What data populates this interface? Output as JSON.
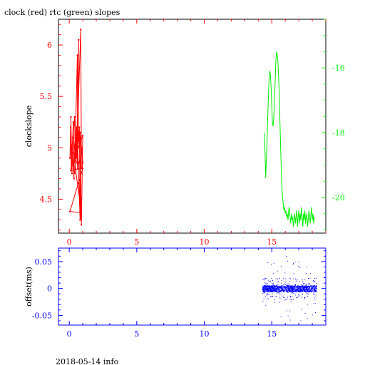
{
  "chart_data": [
    {
      "type": "line",
      "title": "clock (red) rtc (green) slopes",
      "ylabel": "clockslope",
      "xlim": [
        -0.8,
        19
      ],
      "ylim": [
        4.17,
        6.25
      ],
      "y2lim": [
        -21.1,
        -14.5
      ],
      "x_ticks": [
        "0",
        "5",
        "10",
        "15"
      ],
      "y_ticks": [
        "4.5",
        "5",
        "5.5",
        "6"
      ],
      "y2_ticks": [
        "-20",
        "-18",
        "-16"
      ],
      "grid": false,
      "colors": {
        "axes": "#000000",
        "clock": "#ff0000",
        "rtc": "#00ee00"
      },
      "series": [
        {
          "name": "clock",
          "axis": "left",
          "x": [
            0.05,
            0.1,
            0.15,
            0.12,
            0.2,
            0.25,
            0.18,
            0.3,
            0.35,
            0.2,
            0.4,
            0.45,
            0.3,
            0.5,
            0.55,
            0.4,
            0.6,
            0.62,
            0.5,
            0.65,
            0.7,
            0.55,
            0.75,
            0.8,
            0.6,
            0.85,
            0.9,
            0.7,
            0.95,
            1.0,
            0.8,
            0.9,
            1.0,
            0.1,
            1.0,
            0.05,
            0.9,
            0.3,
            0.65,
            0.8,
            0.85
          ],
          "y": [
            4.9,
            5.2,
            4.8,
            5.3,
            4.75,
            5.1,
            4.85,
            5.25,
            4.7,
            5.0,
            5.3,
            4.8,
            5.1,
            4.9,
            5.2,
            4.75,
            5.9,
            4.8,
            5.1,
            5.0,
            6.05,
            4.9,
            5.2,
            4.3,
            5.15,
            6.15,
            4.8,
            5.1,
            5.0,
            4.85,
            5.15,
            4.25,
            5.12,
            4.78,
            4.8,
            4.38,
            4.37,
            4.95,
            4.82,
            4.9,
            4.3
          ]
        },
        {
          "name": "rtc",
          "axis": "right",
          "x": [
            14.45,
            14.5,
            14.55,
            14.6,
            14.65,
            14.7,
            14.75,
            14.8,
            14.85,
            14.9,
            14.95,
            15.0,
            15.05,
            15.1,
            15.15,
            15.2,
            15.25,
            15.3,
            15.35,
            15.4,
            15.45,
            15.5,
            15.55,
            15.6,
            15.65,
            15.7,
            15.75,
            15.8,
            15.85,
            15.9,
            15.95,
            16.0,
            16.05,
            16.1,
            16.15,
            16.2,
            16.25,
            16.3,
            16.35,
            16.4,
            16.45,
            16.5,
            16.55,
            16.6,
            16.65,
            16.7,
            16.75,
            16.8,
            16.85,
            16.9,
            16.95,
            17.0,
            17.05,
            17.1,
            17.15,
            17.2,
            17.25,
            17.3,
            17.35,
            17.4,
            17.45,
            17.5,
            17.55,
            17.6,
            17.65,
            17.7,
            17.75,
            17.8,
            17.85,
            17.9,
            17.95,
            18.0,
            18.05,
            18.1,
            18.15
          ],
          "y": [
            -18.0,
            -18.6,
            -19.4,
            -18.8,
            -18.2,
            -17.5,
            -16.9,
            -16.3,
            -16.1,
            -16.2,
            -16.6,
            -17.2,
            -17.7,
            -17.8,
            -17.5,
            -17.0,
            -16.4,
            -15.8,
            -15.5,
            -15.6,
            -15.8,
            -16.2,
            -16.8,
            -17.6,
            -18.4,
            -19.1,
            -19.7,
            -20.0,
            -20.2,
            -20.4,
            -20.3,
            -20.5,
            -20.4,
            -20.6,
            -20.5,
            -20.7,
            -20.4,
            -20.3,
            -20.6,
            -20.8,
            -20.5,
            -20.7,
            -20.6,
            -20.9,
            -20.7,
            -20.5,
            -20.8,
            -20.6,
            -20.4,
            -20.9,
            -20.6,
            -20.4,
            -20.8,
            -20.5,
            -20.7,
            -20.3,
            -20.6,
            -20.9,
            -20.5,
            -20.7,
            -20.4,
            -20.8,
            -20.6,
            -20.5,
            -20.9,
            -20.7,
            -20.4,
            -20.6,
            -20.8,
            -20.5,
            -20.3,
            -20.7,
            -20.5,
            -20.8,
            -20.6
          ]
        }
      ]
    },
    {
      "type": "scatter",
      "ylabel": "offset(ms)",
      "xlim": [
        -0.8,
        19
      ],
      "ylim": [
        -0.068,
        0.075
      ],
      "x_ticks": [
        "0",
        "5",
        "10",
        "15"
      ],
      "y_ticks": [
        "-0.05",
        "0",
        "0.05"
      ],
      "grid": false,
      "colors": {
        "axes": "#0000ff",
        "points": "#0000ff"
      },
      "series": [
        {
          "name": "offset",
          "x_range": [
            14.3,
            18.3
          ],
          "band": [
            -0.006,
            0.006
          ],
          "spread": [
            -0.06,
            0.065
          ]
        }
      ]
    }
  ],
  "footer": {
    "text": "2018-05-14 info"
  }
}
